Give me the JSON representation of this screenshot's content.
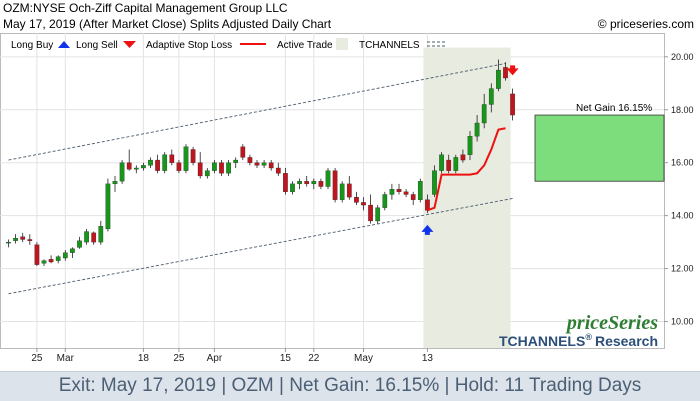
{
  "header": {
    "title": "OZM:NYSE Och-Ziff Capital Management Group LLC",
    "subtitle": "May 17, 2019 (After Market Close)  Splits Adjusted Daily Chart",
    "copyright": "© priceseries.com"
  },
  "legend": {
    "long_buy": "Long Buy",
    "long_sell": "Long Sell",
    "adaptive_stop": "Adaptive Stop Loss",
    "active_trade": "Active Trade",
    "tchannels": "TCHANNELS"
  },
  "annotation": {
    "net_gain": "Net Gain 16.15%"
  },
  "watermark": {
    "brand": "priceSeries",
    "tagline": "TCHANNELS",
    "registered": "®",
    "research": "Research"
  },
  "footer": {
    "text": "Exit: May 17, 2019 | OZM | Net Gain: 16.15% | Hold: 11 Trading Days"
  },
  "colors": {
    "up": "#17961b",
    "down": "#c0141e",
    "stop": "#ee1111",
    "buy_arrow": "#1133ee",
    "sell_arrow": "#ee1111",
    "active_trade_fill": "#e8ebdf",
    "gain_fill": "#7ddd7d",
    "channel": "#4a5a6e",
    "brand": "#2e7d32",
    "research": "#2b4f78"
  },
  "chart_data": {
    "type": "candlestick",
    "ylim": [
      9.0,
      20.9
    ],
    "yticks": [
      10.0,
      12.0,
      14.0,
      16.0,
      18.0,
      20.0
    ],
    "ytick_labels": [
      "10.00",
      "12.00",
      "14.00",
      "16.00",
      "18.00",
      "20.00"
    ],
    "grid": true,
    "xtick_labels": [
      {
        "label": "25",
        "index": 4
      },
      {
        "label": "Mar",
        "index": 8
      },
      {
        "label": "18",
        "index": 19
      },
      {
        "label": "25",
        "index": 24
      },
      {
        "label": "Apr",
        "index": 29
      },
      {
        "label": "15",
        "index": 39
      },
      {
        "label": "22",
        "index": 43
      },
      {
        "label": "May",
        "index": 50
      },
      {
        "label": "13",
        "index": 59
      }
    ],
    "candles": [
      {
        "o": 13.0,
        "h": 13.1,
        "l": 12.8,
        "c": 13.0
      },
      {
        "o": 13.05,
        "h": 13.3,
        "l": 12.95,
        "c": 13.15
      },
      {
        "o": 13.2,
        "h": 13.35,
        "l": 13.0,
        "c": 13.1
      },
      {
        "o": 13.1,
        "h": 13.3,
        "l": 12.9,
        "c": 13.05
      },
      {
        "o": 12.9,
        "h": 13.0,
        "l": 12.1,
        "c": 12.15
      },
      {
        "o": 12.2,
        "h": 12.35,
        "l": 12.1,
        "c": 12.3
      },
      {
        "o": 12.35,
        "h": 12.5,
        "l": 12.2,
        "c": 12.25
      },
      {
        "o": 12.3,
        "h": 12.5,
        "l": 12.2,
        "c": 12.45
      },
      {
        "o": 12.4,
        "h": 12.7,
        "l": 12.3,
        "c": 12.6
      },
      {
        "o": 12.6,
        "h": 12.8,
        "l": 12.4,
        "c": 12.75
      },
      {
        "o": 12.8,
        "h": 13.2,
        "l": 12.75,
        "c": 13.05
      },
      {
        "o": 13.0,
        "h": 13.5,
        "l": 12.9,
        "c": 13.4
      },
      {
        "o": 13.35,
        "h": 13.4,
        "l": 12.9,
        "c": 13.0
      },
      {
        "o": 13.0,
        "h": 13.8,
        "l": 12.9,
        "c": 13.6
      },
      {
        "o": 13.5,
        "h": 15.4,
        "l": 13.4,
        "c": 15.2
      },
      {
        "o": 15.2,
        "h": 15.5,
        "l": 14.9,
        "c": 15.3
      },
      {
        "o": 15.3,
        "h": 16.1,
        "l": 15.2,
        "c": 16.0
      },
      {
        "o": 16.0,
        "h": 16.5,
        "l": 15.7,
        "c": 15.75
      },
      {
        "o": 15.75,
        "h": 15.9,
        "l": 15.6,
        "c": 15.8
      },
      {
        "o": 15.8,
        "h": 16.0,
        "l": 15.7,
        "c": 15.9
      },
      {
        "o": 15.9,
        "h": 16.2,
        "l": 15.8,
        "c": 16.1
      },
      {
        "o": 16.1,
        "h": 16.3,
        "l": 15.6,
        "c": 15.7
      },
      {
        "o": 15.7,
        "h": 16.4,
        "l": 15.6,
        "c": 16.3
      },
      {
        "o": 16.3,
        "h": 16.5,
        "l": 15.9,
        "c": 16.0
      },
      {
        "o": 16.0,
        "h": 16.1,
        "l": 15.6,
        "c": 15.7
      },
      {
        "o": 15.7,
        "h": 16.7,
        "l": 15.6,
        "c": 16.6
      },
      {
        "o": 16.5,
        "h": 16.6,
        "l": 15.9,
        "c": 16.0
      },
      {
        "o": 16.0,
        "h": 16.4,
        "l": 15.4,
        "c": 15.5
      },
      {
        "o": 15.5,
        "h": 15.8,
        "l": 15.4,
        "c": 15.7
      },
      {
        "o": 15.7,
        "h": 16.1,
        "l": 15.6,
        "c": 16.0
      },
      {
        "o": 16.0,
        "h": 16.1,
        "l": 15.5,
        "c": 15.6
      },
      {
        "o": 15.6,
        "h": 16.1,
        "l": 15.5,
        "c": 16.0
      },
      {
        "o": 16.0,
        "h": 16.2,
        "l": 15.8,
        "c": 16.1
      },
      {
        "o": 16.6,
        "h": 16.7,
        "l": 16.1,
        "c": 16.2
      },
      {
        "o": 16.2,
        "h": 16.3,
        "l": 15.9,
        "c": 16.0
      },
      {
        "o": 16.0,
        "h": 16.1,
        "l": 15.8,
        "c": 15.9
      },
      {
        "o": 15.9,
        "h": 16.1,
        "l": 15.8,
        "c": 16.0
      },
      {
        "o": 16.0,
        "h": 16.1,
        "l": 15.7,
        "c": 15.8
      },
      {
        "o": 15.8,
        "h": 16.0,
        "l": 15.5,
        "c": 15.6
      },
      {
        "o": 15.6,
        "h": 15.8,
        "l": 14.8,
        "c": 14.9
      },
      {
        "o": 14.9,
        "h": 15.3,
        "l": 14.8,
        "c": 15.2
      },
      {
        "o": 15.2,
        "h": 15.4,
        "l": 15.0,
        "c": 15.3
      },
      {
        "o": 15.3,
        "h": 15.5,
        "l": 15.1,
        "c": 15.2
      },
      {
        "o": 15.2,
        "h": 15.4,
        "l": 15.0,
        "c": 15.3
      },
      {
        "o": 15.3,
        "h": 15.4,
        "l": 15.0,
        "c": 15.1
      },
      {
        "o": 15.1,
        "h": 15.8,
        "l": 15.0,
        "c": 15.7
      },
      {
        "o": 15.7,
        "h": 15.8,
        "l": 14.5,
        "c": 14.6
      },
      {
        "o": 14.6,
        "h": 15.3,
        "l": 14.5,
        "c": 15.2
      },
      {
        "o": 15.2,
        "h": 15.5,
        "l": 14.6,
        "c": 14.7
      },
      {
        "o": 14.7,
        "h": 14.9,
        "l": 14.4,
        "c": 14.5
      },
      {
        "o": 14.5,
        "h": 14.7,
        "l": 14.2,
        "c": 14.4
      },
      {
        "o": 14.4,
        "h": 14.8,
        "l": 13.7,
        "c": 13.8
      },
      {
        "o": 13.8,
        "h": 14.4,
        "l": 13.7,
        "c": 14.3
      },
      {
        "o": 14.3,
        "h": 14.9,
        "l": 14.2,
        "c": 14.8
      },
      {
        "o": 14.8,
        "h": 15.2,
        "l": 14.6,
        "c": 15.0
      },
      {
        "o": 15.0,
        "h": 15.2,
        "l": 14.8,
        "c": 14.9
      },
      {
        "o": 14.9,
        "h": 15.0,
        "l": 14.7,
        "c": 14.8
      },
      {
        "o": 14.8,
        "h": 14.9,
        "l": 14.4,
        "c": 14.6
      },
      {
        "o": 14.6,
        "h": 15.4,
        "l": 14.5,
        "c": 15.3
      },
      {
        "o": 14.6,
        "h": 14.8,
        "l": 14.1,
        "c": 14.2
      },
      {
        "o": 14.8,
        "h": 15.9,
        "l": 14.7,
        "c": 15.7
      },
      {
        "o": 15.7,
        "h": 16.4,
        "l": 15.6,
        "c": 16.3
      },
      {
        "o": 16.1,
        "h": 16.3,
        "l": 15.6,
        "c": 15.7
      },
      {
        "o": 15.7,
        "h": 16.3,
        "l": 15.6,
        "c": 16.2
      },
      {
        "o": 16.3,
        "h": 16.5,
        "l": 16.0,
        "c": 16.1
      },
      {
        "o": 16.3,
        "h": 17.2,
        "l": 16.1,
        "c": 17.0
      },
      {
        "o": 17.0,
        "h": 17.8,
        "l": 16.8,
        "c": 17.5
      },
      {
        "o": 17.5,
        "h": 18.6,
        "l": 17.3,
        "c": 18.2
      },
      {
        "o": 18.2,
        "h": 19.0,
        "l": 17.9,
        "c": 18.8
      },
      {
        "o": 18.8,
        "h": 19.9,
        "l": 18.7,
        "c": 19.5
      },
      {
        "o": 19.6,
        "h": 19.8,
        "l": 19.1,
        "c": 19.2
      },
      {
        "o": 18.6,
        "h": 18.8,
        "l": 17.6,
        "c": 17.8
      }
    ],
    "active_trade": {
      "start_index": 59,
      "end_index": 71
    },
    "adaptive_stop": [
      {
        "i": 59,
        "v": 14.2
      },
      {
        "i": 60,
        "v": 14.3
      },
      {
        "i": 61,
        "v": 15.55
      },
      {
        "i": 62,
        "v": 15.55
      },
      {
        "i": 63,
        "v": 15.55
      },
      {
        "i": 64,
        "v": 15.55
      },
      {
        "i": 65,
        "v": 15.55
      },
      {
        "i": 66,
        "v": 15.6
      },
      {
        "i": 67,
        "v": 15.9
      },
      {
        "i": 68,
        "v": 16.5
      },
      {
        "i": 69,
        "v": 17.25
      },
      {
        "i": 70,
        "v": 17.3
      }
    ],
    "long_buy": {
      "index": 59,
      "value": 13.5
    },
    "long_sell": {
      "index": 71,
      "value": 19.45
    },
    "net_gain": {
      "entry": 15.3,
      "exit": 17.8,
      "percent": 16.15
    },
    "tchannels": {
      "upper": [
        {
          "i": 0,
          "v": 16.1
        },
        {
          "i": 70,
          "v": 19.75
        }
      ],
      "lower": [
        {
          "i": 0,
          "v": 11.05
        },
        {
          "i": 71,
          "v": 14.65
        }
      ]
    }
  }
}
